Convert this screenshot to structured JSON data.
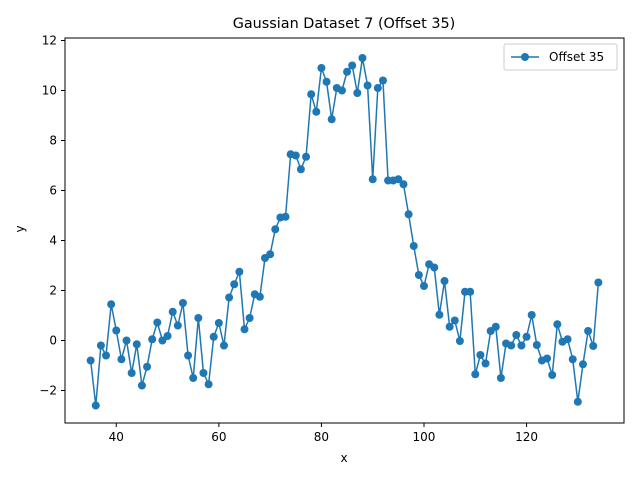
{
  "chart_data": {
    "type": "line",
    "title": "Gaussian Dataset 7 (Offset 35)",
    "xlabel": "x",
    "ylabel": "y",
    "xlim": [
      30,
      139
    ],
    "ylim": [
      -3.3,
      12.1
    ],
    "xticks": [
      40,
      60,
      80,
      100,
      120
    ],
    "yticks": [
      -2,
      0,
      2,
      4,
      6,
      8,
      10,
      12
    ],
    "grid": false,
    "legend_position": "top-right",
    "series": [
      {
        "name": "Offset 35",
        "color": "#1f77b4",
        "marker": "circle",
        "x": [
          35,
          36,
          37,
          38,
          39,
          40,
          41,
          42,
          43,
          44,
          45,
          46,
          47,
          48,
          49,
          50,
          51,
          52,
          53,
          54,
          55,
          56,
          57,
          58,
          59,
          60,
          61,
          62,
          63,
          64,
          65,
          66,
          67,
          68,
          69,
          70,
          71,
          72,
          73,
          74,
          75,
          76,
          77,
          78,
          79,
          80,
          81,
          82,
          83,
          84,
          85,
          86,
          87,
          88,
          89,
          90,
          91,
          92,
          93,
          94,
          95,
          96,
          97,
          98,
          99,
          100,
          101,
          102,
          103,
          104,
          105,
          106,
          107,
          108,
          109,
          110,
          111,
          112,
          113,
          114,
          115,
          116,
          117,
          118,
          119,
          120,
          121,
          122,
          123,
          124,
          125,
          126,
          127,
          128,
          129,
          130,
          131,
          132,
          133,
          134
        ],
        "y": [
          -0.8,
          -2.6,
          -0.2,
          -0.6,
          1.45,
          0.4,
          -0.75,
          0.0,
          -1.3,
          -0.15,
          -1.8,
          -1.05,
          0.05,
          0.72,
          0.0,
          0.18,
          1.15,
          0.6,
          1.5,
          -0.6,
          -1.5,
          0.9,
          -1.3,
          -1.75,
          0.15,
          0.7,
          -0.2,
          1.72,
          2.25,
          2.75,
          0.45,
          0.9,
          1.85,
          1.75,
          3.3,
          3.45,
          4.45,
          4.92,
          4.95,
          7.45,
          7.4,
          6.85,
          7.35,
          9.85,
          9.15,
          10.9,
          10.35,
          8.85,
          10.1,
          10.0,
          10.75,
          11.0,
          9.9,
          11.3,
          10.2,
          6.45,
          10.1,
          10.4,
          6.4,
          6.4,
          6.45,
          6.25,
          5.05,
          3.78,
          2.62,
          2.18,
          3.05,
          2.92,
          1.03,
          2.38,
          0.55,
          0.8,
          -0.02,
          1.95,
          1.95,
          -1.35,
          -0.58,
          -0.92,
          0.38,
          0.55,
          -1.5,
          -0.12,
          -0.2,
          0.22,
          -0.2,
          0.15,
          1.02,
          -0.18,
          -0.8,
          -0.72,
          -1.38,
          0.65,
          -0.05,
          0.05,
          -0.75,
          -2.45,
          -0.95,
          0.38,
          -0.22,
          2.32
        ]
      }
    ]
  }
}
